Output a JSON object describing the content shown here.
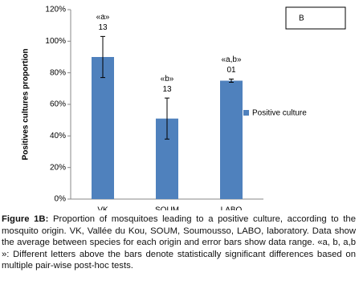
{
  "chart_data": {
    "type": "bar",
    "panel_label": "B",
    "y_axis_label": "Positives cultures proportion",
    "categories": [
      "VK",
      "SOUM",
      "LABO"
    ],
    "series": [
      {
        "name": "Positive culture",
        "color": "#4f81bd",
        "values": [
          90,
          51,
          75
        ],
        "errors": [
          13,
          13,
          1
        ]
      }
    ],
    "letters": [
      "«a»",
      "«b»",
      "«a,b»"
    ],
    "counts": [
      "13",
      "13",
      "01"
    ],
    "ylim": [
      0,
      120
    ],
    "yticks": [
      {
        "value": 0,
        "label": "0%"
      },
      {
        "value": 20,
        "label": "20%"
      },
      {
        "value": 40,
        "label": "40%"
      },
      {
        "value": 60,
        "label": "60%"
      },
      {
        "value": 80,
        "label": "80%"
      },
      {
        "value": 100,
        "label": "100%"
      },
      {
        "value": 120,
        "label": "120%"
      }
    ],
    "legend": "right"
  },
  "caption": {
    "label": "Figure 1B:",
    "text": "Proportion of mosquitoes leading to a positive culture, according to the mosquito origin. VK, Vallée du Kou, SOUM, Soumousso, LABO, laboratory. Data show the average between species for each origin and error bars show data range. «a, b, a,b »: Different letters above the bars denote statistically significant differences based on multiple pair-wise post-hoc tests."
  }
}
